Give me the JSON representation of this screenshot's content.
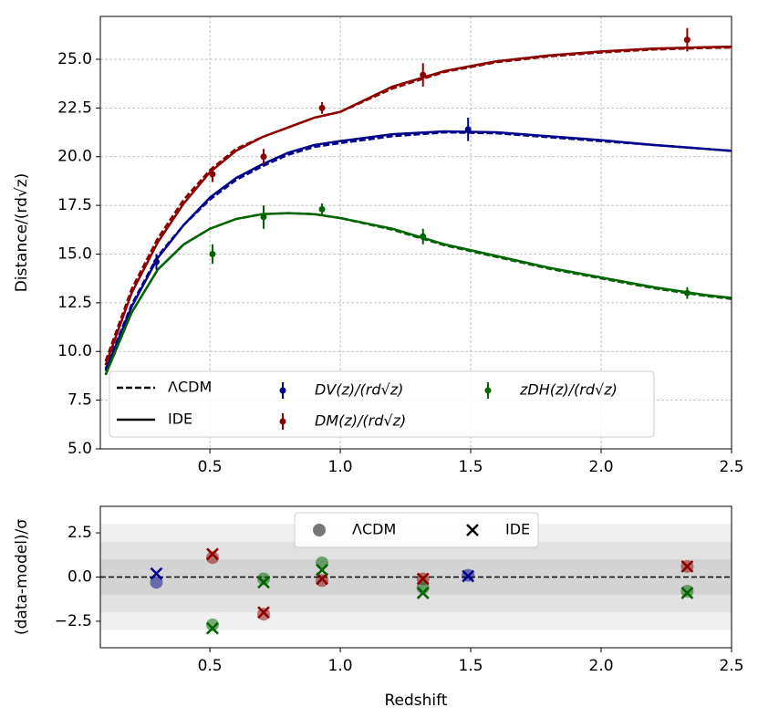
{
  "chart_data": [
    {
      "type": "errorbar-model",
      "y_label": "Distance/(rd√z)",
      "xlim": [
        0.08,
        2.5
      ],
      "ylim": [
        5,
        27.2
      ],
      "xticks": [
        0.5,
        {
          "value": 1,
          "label": "1.0"
        },
        1.5,
        {
          "value": 2,
          "label": "2.0"
        },
        2.5
      ],
      "yticks": [
        {
          "value": 5,
          "label": "5.0"
        },
        7.5,
        {
          "value": 10,
          "label": "10.0"
        },
        12.5,
        {
          "value": 15,
          "label": "15.0"
        },
        17.5,
        {
          "value": 20,
          "label": "20.0"
        },
        22.5,
        {
          "value": 25,
          "label": "25.0"
        }
      ],
      "grid": true,
      "models": [
        {
          "name": "ΛCDM",
          "style": "dashed"
        },
        {
          "name": "IDE",
          "style": "solid"
        }
      ],
      "model_x": [
        0.1,
        0.2,
        0.3,
        0.4,
        0.5,
        0.6,
        0.7,
        0.8,
        0.9,
        1.0,
        1.2,
        1.4,
        1.6,
        1.8,
        2.0,
        2.2,
        2.4,
        2.5
      ],
      "series": [
        {
          "name": "DV(z)/(rd√z)",
          "color": "#00008b",
          "x": [
            0.295,
            1.49
          ],
          "values": [
            14.6,
            21.4
          ],
          "errors": [
            0.4,
            0.6
          ],
          "model_values": [
            [
              9.1,
              12.4,
              14.9,
              16.5,
              17.8,
              18.8,
              19.5,
              20.1,
              20.5,
              20.7,
              21.05,
              21.25,
              21.2,
              21.0,
              20.8,
              20.6,
              20.4,
              20.3
            ],
            [
              9.0,
              12.3,
              14.8,
              16.5,
              17.9,
              18.9,
              19.6,
              20.2,
              20.6,
              20.8,
              21.15,
              21.3,
              21.25,
              21.05,
              20.85,
              20.6,
              20.4,
              20.3
            ]
          ]
        },
        {
          "name": "DM(z)/(rd√z)",
          "color": "#8b0000",
          "x": [
            0.51,
            0.706,
            0.93,
            1.317,
            2.33
          ],
          "values": [
            19.1,
            20.0,
            22.5,
            24.2,
            26.0
          ],
          "errors": [
            0.4,
            0.4,
            0.3,
            0.6,
            0.6
          ],
          "model_values": [
            [
              9.5,
              13.2,
              15.8,
              17.8,
              19.3,
              20.4,
              21.0,
              21.5,
              22.0,
              22.3,
              23.5,
              24.35,
              24.85,
              25.15,
              25.35,
              25.5,
              25.58,
              25.6
            ],
            [
              9.3,
              13.0,
              15.6,
              17.6,
              19.2,
              20.3,
              21.0,
              21.5,
              22.0,
              22.3,
              23.6,
              24.4,
              24.9,
              25.2,
              25.4,
              25.55,
              25.62,
              25.65
            ]
          ]
        },
        {
          "name": "zDH(z)/(rd√z)",
          "color": "#006400",
          "x": [
            0.51,
            0.706,
            0.93,
            1.317,
            2.33
          ],
          "values": [
            15.0,
            16.9,
            17.3,
            15.9,
            13.0
          ],
          "errors": [
            0.5,
            0.6,
            0.3,
            0.4,
            0.3
          ],
          "model_values": [
            [
              8.8,
              12.0,
              14.2,
              15.5,
              16.3,
              16.8,
              17.05,
              17.1,
              17.05,
              16.85,
              16.25,
              15.45,
              14.85,
              14.25,
              13.75,
              13.25,
              12.85,
              12.7
            ],
            [
              8.8,
              12.0,
              14.2,
              15.5,
              16.3,
              16.8,
              17.05,
              17.1,
              17.05,
              16.85,
              16.3,
              15.5,
              14.9,
              14.3,
              13.8,
              13.3,
              12.9,
              12.75
            ]
          ]
        }
      ]
    },
    {
      "type": "residual-scatter",
      "x_label": "Redshift",
      "y_label": "(data-model)/σ",
      "xlim": [
        0.08,
        2.5
      ],
      "ylim": [
        -4,
        4
      ],
      "xticks": [
        0.5,
        {
          "value": 1,
          "label": "1.0"
        },
        1.5,
        {
          "value": 2,
          "label": "2.0"
        },
        2.5
      ],
      "yticks": [
        {
          "value": -2.5,
          "label": "−2.5"
        },
        {
          "value": 0,
          "label": "0.0"
        },
        2.5
      ],
      "grid": false,
      "bands": [
        1,
        2,
        3
      ],
      "reference_line": 0,
      "series": [
        {
          "name": "ΛCDM",
          "marker": "circle",
          "color": "#555555",
          "groups": [
            {
              "color": "#00008b",
              "x": [
                0.295,
                1.49
              ],
              "values": [
                -0.3,
                0.1
              ]
            },
            {
              "color": "#8b0000",
              "x": [
                0.51,
                0.706,
                0.93,
                1.317,
                2.33
              ],
              "values": [
                1.1,
                -2.1,
                -0.2,
                -0.1,
                0.6
              ]
            },
            {
              "color": "#006400",
              "x": [
                0.51,
                0.706,
                0.93,
                1.317,
                2.33
              ],
              "values": [
                -2.7,
                -0.1,
                0.8,
                -0.6,
                -0.8
              ]
            }
          ]
        },
        {
          "name": "IDE",
          "marker": "cross",
          "color": "#000000",
          "groups": [
            {
              "color": "#00008b",
              "x": [
                0.295,
                1.49
              ],
              "values": [
                0.2,
                0.05
              ]
            },
            {
              "color": "#8b0000",
              "x": [
                0.51,
                0.706,
                0.93,
                1.317,
                2.33
              ],
              "values": [
                1.3,
                -2.0,
                -0.1,
                -0.1,
                0.6
              ]
            },
            {
              "color": "#006400",
              "x": [
                0.51,
                0.706,
                0.93,
                1.317,
                2.33
              ],
              "values": [
                -2.9,
                -0.3,
                0.4,
                -0.9,
                -0.9
              ]
            }
          ]
        }
      ]
    }
  ]
}
